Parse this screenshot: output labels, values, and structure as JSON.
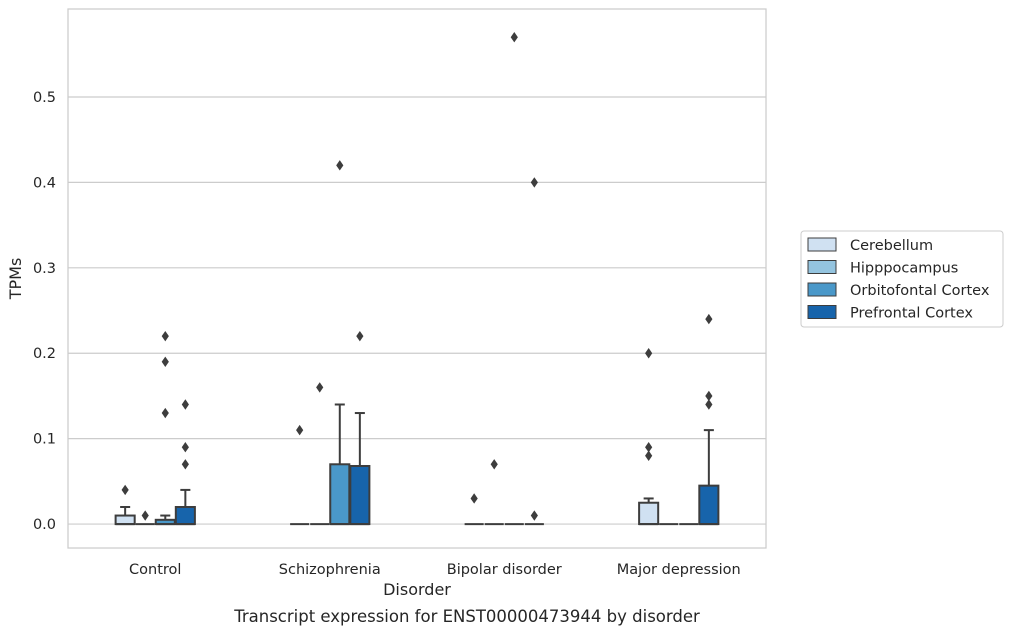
{
  "caption": "Transcript expression for ENST00000473944 by disorder",
  "chart_data": {
    "type": "boxplot",
    "xlabel": "Disorder",
    "ylabel": "TPMs",
    "ylim": [
      -0.028,
      0.603
    ],
    "yticks": [
      "0.0",
      "0.1",
      "0.2",
      "0.3",
      "0.4",
      "0.5"
    ],
    "grid": "horizontal",
    "legend_position": "right",
    "categories": [
      "Control",
      "Schizophrenia",
      "Bipolar disorder",
      "Major depression"
    ],
    "series": [
      {
        "name": "Cerebellum",
        "color": "#d0e1f2",
        "boxes": [
          {
            "q1": 0.0,
            "median": 0.0,
            "q3": 0.01,
            "whisker_low": 0.0,
            "whisker_high": 0.02,
            "outliers": [
              0.04
            ]
          },
          {
            "q1": 0.0,
            "median": 0.0,
            "q3": 0.0,
            "whisker_low": 0.0,
            "whisker_high": 0.0,
            "outliers": [
              0.11
            ]
          },
          {
            "q1": 0.0,
            "median": 0.0,
            "q3": 0.0,
            "whisker_low": 0.0,
            "whisker_high": 0.0,
            "outliers": [
              0.03
            ]
          },
          {
            "q1": 0.0,
            "median": 0.0,
            "q3": 0.025,
            "whisker_low": 0.0,
            "whisker_high": 0.03,
            "outliers": [
              0.08,
              0.09,
              0.2
            ]
          }
        ]
      },
      {
        "name": "Hipppocampus",
        "color": "#94c4df",
        "boxes": [
          {
            "q1": 0.0,
            "median": 0.0,
            "q3": 0.0,
            "whisker_low": 0.0,
            "whisker_high": 0.0,
            "outliers": [
              0.01
            ]
          },
          {
            "q1": 0.0,
            "median": 0.0,
            "q3": 0.0,
            "whisker_low": 0.0,
            "whisker_high": 0.0,
            "outliers": [
              0.16
            ]
          },
          {
            "q1": 0.0,
            "median": 0.0,
            "q3": 0.0,
            "whisker_low": 0.0,
            "whisker_high": 0.0,
            "outliers": [
              0.07
            ]
          },
          {
            "q1": 0.0,
            "median": 0.0,
            "q3": 0.0,
            "whisker_low": 0.0,
            "whisker_high": 0.0,
            "outliers": []
          }
        ]
      },
      {
        "name": "Orbitofontal Cortex",
        "color": "#4a98c9",
        "boxes": [
          {
            "q1": 0.0,
            "median": 0.0,
            "q3": 0.005,
            "whisker_low": 0.0,
            "whisker_high": 0.01,
            "outliers": [
              0.13,
              0.19,
              0.22
            ]
          },
          {
            "q1": 0.0,
            "median": 0.0,
            "q3": 0.07,
            "whisker_low": 0.0,
            "whisker_high": 0.14,
            "outliers": [
              0.42
            ]
          },
          {
            "q1": 0.0,
            "median": 0.0,
            "q3": 0.0,
            "whisker_low": 0.0,
            "whisker_high": 0.0,
            "outliers": [
              0.57
            ]
          },
          {
            "q1": 0.0,
            "median": 0.0,
            "q3": 0.0,
            "whisker_low": 0.0,
            "whisker_high": 0.0,
            "outliers": []
          }
        ]
      },
      {
        "name": "Prefrontal Cortex",
        "color": "#1764ab",
        "boxes": [
          {
            "q1": 0.0,
            "median": 0.0,
            "q3": 0.02,
            "whisker_low": 0.0,
            "whisker_high": 0.04,
            "outliers": [
              0.07,
              0.09,
              0.14
            ]
          },
          {
            "q1": 0.0,
            "median": 0.0,
            "q3": 0.068,
            "whisker_low": 0.0,
            "whisker_high": 0.13,
            "outliers": [
              0.22
            ]
          },
          {
            "q1": 0.0,
            "median": 0.0,
            "q3": 0.0,
            "whisker_low": 0.0,
            "whisker_high": 0.0,
            "outliers": [
              0.01,
              0.4
            ]
          },
          {
            "q1": 0.0,
            "median": 0.0,
            "q3": 0.045,
            "whisker_low": 0.0,
            "whisker_high": 0.11,
            "outliers": [
              0.14,
              0.15,
              0.24
            ]
          }
        ]
      }
    ]
  }
}
